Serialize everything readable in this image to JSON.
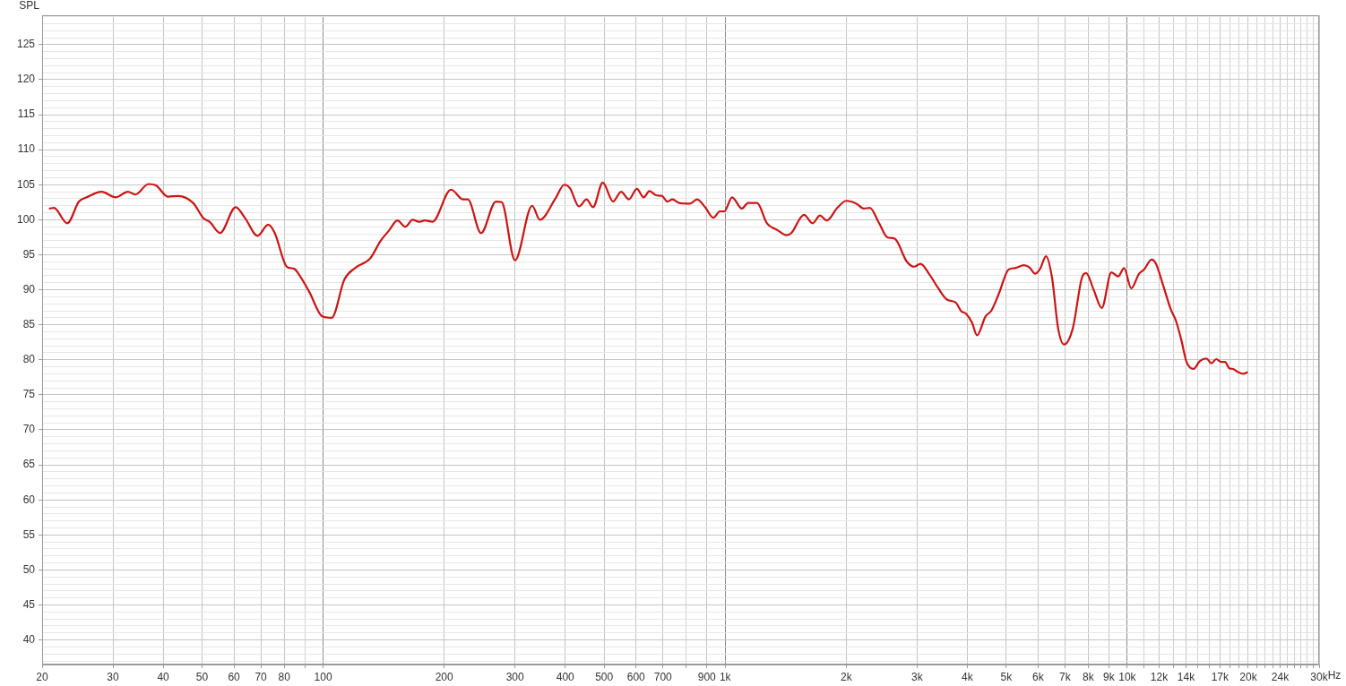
{
  "chart_data": {
    "type": "line",
    "ylabel": "SPL",
    "xlabel": "Hz",
    "log": "x",
    "grid": true,
    "xlim": [
      20,
      30000
    ],
    "ylim": [
      36.5,
      129.2
    ],
    "xticks": [
      20,
      30,
      40,
      50,
      60,
      70,
      80,
      {
        "value": 90,
        "label": null
      },
      100,
      200,
      300,
      400,
      500,
      600,
      700,
      {
        "value": 800,
        "label": null
      },
      900,
      {
        "value": 1000,
        "label": "1k"
      },
      {
        "value": 2000,
        "label": "2k"
      },
      {
        "value": 3000,
        "label": "3k"
      },
      {
        "value": 4000,
        "label": "4k"
      },
      {
        "value": 5000,
        "label": "5k"
      },
      {
        "value": 6000,
        "label": "6k"
      },
      {
        "value": 7000,
        "label": "7k"
      },
      {
        "value": 8000,
        "label": "8k"
      },
      {
        "value": 9000,
        "label": "9k"
      },
      {
        "value": 10000,
        "label": "10k"
      },
      {
        "value": 11000,
        "label": null
      },
      {
        "value": 12000,
        "label": "12k"
      },
      {
        "value": 13000,
        "label": null
      },
      {
        "value": 14000,
        "label": "14k"
      },
      {
        "value": 15000,
        "label": null
      },
      {
        "value": 16000,
        "label": null
      },
      {
        "value": 17000,
        "label": "17k"
      },
      {
        "value": 18000,
        "label": null
      },
      {
        "value": 19000,
        "label": null
      },
      {
        "value": 20000,
        "label": "20k"
      },
      {
        "value": 21000,
        "label": null
      },
      {
        "value": 22000,
        "label": null
      },
      {
        "value": 23000,
        "label": null
      },
      {
        "value": 24000,
        "label": "24k"
      },
      {
        "value": 25000,
        "label": null
      },
      {
        "value": 26000,
        "label": null
      },
      {
        "value": 27000,
        "label": null
      },
      {
        "value": 28000,
        "label": null
      },
      {
        "value": 29000,
        "label": null
      },
      {
        "value": 30000,
        "label": "30k"
      }
    ],
    "yticks": [
      {
        "value": 37,
        "label": null
      },
      {
        "value": 38,
        "label": null
      },
      {
        "value": 39,
        "label": null
      },
      40,
      {
        "value": 41,
        "label": null
      },
      {
        "value": 42,
        "label": null
      },
      {
        "value": 43,
        "label": null
      },
      {
        "value": 44,
        "label": null
      },
      45,
      {
        "value": 46,
        "label": null
      },
      {
        "value": 47,
        "label": null
      },
      {
        "value": 48,
        "label": null
      },
      {
        "value": 49,
        "label": null
      },
      50,
      {
        "value": 51,
        "label": null
      },
      {
        "value": 52,
        "label": null
      },
      {
        "value": 53,
        "label": null
      },
      {
        "value": 54,
        "label": null
      },
      55,
      {
        "value": 56,
        "label": null
      },
      {
        "value": 57,
        "label": null
      },
      {
        "value": 58,
        "label": null
      },
      {
        "value": 59,
        "label": null
      },
      60,
      {
        "value": 61,
        "label": null
      },
      {
        "value": 62,
        "label": null
      },
      {
        "value": 63,
        "label": null
      },
      {
        "value": 64,
        "label": null
      },
      65,
      {
        "value": 66,
        "label": null
      },
      {
        "value": 67,
        "label": null
      },
      {
        "value": 68,
        "label": null
      },
      {
        "value": 69,
        "label": null
      },
      70,
      {
        "value": 71,
        "label": null
      },
      {
        "value": 72,
        "label": null
      },
      {
        "value": 73,
        "label": null
      },
      {
        "value": 74,
        "label": null
      },
      75,
      {
        "value": 76,
        "label": null
      },
      {
        "value": 77,
        "label": null
      },
      {
        "value": 78,
        "label": null
      },
      {
        "value": 79,
        "label": null
      },
      80,
      {
        "value": 81,
        "label": null
      },
      {
        "value": 82,
        "label": null
      },
      {
        "value": 83,
        "label": null
      },
      {
        "value": 84,
        "label": null
      },
      85,
      {
        "value": 86,
        "label": null
      },
      {
        "value": 87,
        "label": null
      },
      {
        "value": 88,
        "label": null
      },
      {
        "value": 89,
        "label": null
      },
      90,
      {
        "value": 91,
        "label": null
      },
      {
        "value": 92,
        "label": null
      },
      {
        "value": 93,
        "label": null
      },
      {
        "value": 94,
        "label": null
      },
      95,
      {
        "value": 96,
        "label": null
      },
      {
        "value": 97,
        "label": null
      },
      {
        "value": 98,
        "label": null
      },
      {
        "value": 99,
        "label": null
      },
      100,
      {
        "value": 101,
        "label": null
      },
      {
        "value": 102,
        "label": null
      },
      {
        "value": 103,
        "label": null
      },
      {
        "value": 104,
        "label": null
      },
      105,
      {
        "value": 106,
        "label": null
      },
      {
        "value": 107,
        "label": null
      },
      {
        "value": 108,
        "label": null
      },
      {
        "value": 109,
        "label": null
      },
      110,
      {
        "value": 111,
        "label": null
      },
      {
        "value": 112,
        "label": null
      },
      {
        "value": 113,
        "label": null
      },
      {
        "value": 114,
        "label": null
      },
      115,
      {
        "value": 116,
        "label": null
      },
      {
        "value": 117,
        "label": null
      },
      {
        "value": 118,
        "label": null
      },
      {
        "value": 119,
        "label": null
      },
      120,
      {
        "value": 121,
        "label": null
      },
      {
        "value": 122,
        "label": null
      },
      {
        "value": 123,
        "label": null
      },
      {
        "value": 124,
        "label": null
      },
      125,
      {
        "value": 126,
        "label": null
      },
      {
        "value": 127,
        "label": null
      },
      {
        "value": 128,
        "label": null
      },
      {
        "value": 129,
        "label": null
      }
    ],
    "x": [
      20.9,
      21.4,
      23.1,
      24.7,
      25.8,
      28.1,
      30.5,
      32.7,
      34.1,
      36.8,
      38.4,
      41.1,
      43.6,
      47.5,
      50.4,
      52.2,
      55.4,
      60.6,
      64,
      68.7,
      73,
      75.8,
      81.2,
      84.7,
      86.8,
      92.2,
      99.5,
      105,
      113,
      120,
      131,
      139,
      146,
      153,
      160,
      167,
      173,
      179,
      187,
      208,
      223,
      229,
      247,
      269,
      278,
      300,
      331,
      346,
      378,
      398,
      411,
      433,
      452,
      469,
      496,
      526,
      551,
      576,
      603,
      627,
      648,
      673,
      696,
      718,
      739,
      768,
      818,
      851,
      891,
      934,
      970,
      995,
      1040,
      1100,
      1140,
      1200,
      1270,
      1350,
      1420,
      1460,
      1570,
      1650,
      1720,
      1790,
      1900,
      2000,
      2120,
      2210,
      2290,
      2410,
      2530,
      2640,
      2830,
      2950,
      3060,
      3220,
      3380,
      3560,
      3740,
      3870,
      3970,
      4110,
      4230,
      4440,
      4590,
      4790,
      5070,
      5260,
      5530,
      5710,
      5900,
      6070,
      6280,
      6500,
      6730,
      6960,
      7320,
      7710,
      7900,
      8250,
      8640,
      9130,
      9490,
      9820,
      10230,
      10700,
      11010,
      11490,
      11790,
      12300,
      12830,
      13210,
      13620,
      14040,
      14620,
      15140,
      15730,
      16190,
      16640,
      17130,
      17500,
      17930,
      18320,
      18790,
      19450,
      19850
    ],
    "series": [
      {
        "color": "#cc1414",
        "values": [
          101.6,
          101.7,
          99.5,
          102.6,
          103.2,
          104.0,
          103.2,
          104.0,
          103.6,
          105.1,
          104.9,
          103.3,
          103.4,
          102.4,
          100.2,
          99.7,
          98.1,
          101.8,
          100.2,
          97.7,
          99.3,
          98.1,
          93.3,
          93.0,
          92.3,
          89.8,
          86.2,
          86.0,
          91.5,
          93.1,
          94.5,
          97.0,
          98.5,
          99.9,
          99.0,
          100.0,
          99.7,
          99.9,
          99.7,
          104.3,
          102.9,
          102.9,
          98.1,
          102.6,
          102.5,
          94.2,
          102.0,
          100.0,
          103.0,
          105.0,
          104.5,
          101.9,
          102.9,
          101.8,
          105.3,
          102.6,
          104.0,
          102.9,
          104.4,
          103.2,
          104.1,
          103.5,
          103.4,
          102.6,
          102.9,
          102.4,
          102.3,
          102.9,
          101.8,
          100.3,
          101.2,
          101.2,
          103.2,
          101.6,
          102.4,
          102.4,
          99.5,
          98.5,
          97.8,
          98.1,
          100.7,
          99.5,
          100.6,
          99.9,
          101.7,
          102.7,
          102.3,
          101.6,
          101.7,
          99.6,
          97.5,
          97.3,
          94.0,
          93.3,
          93.7,
          92.2,
          90.3,
          88.6,
          88.2,
          86.9,
          86.6,
          85.3,
          83.5,
          86.2,
          87.0,
          89.4,
          92.9,
          93.1,
          93.5,
          93.2,
          92.3,
          93.0,
          94.8,
          91.7,
          84.5,
          82.2,
          84.5,
          91.7,
          92.4,
          90.0,
          87.4,
          92.5,
          91.9,
          93.1,
          90.2,
          92.3,
          92.9,
          94.3,
          93.7,
          90.5,
          87.2,
          85.6,
          82.9,
          79.7,
          78.7,
          79.8,
          80.2,
          79.5,
          80.1,
          79.7,
          79.7,
          78.8,
          78.7,
          78.3,
          78.0,
          78.2
        ]
      }
    ]
  }
}
